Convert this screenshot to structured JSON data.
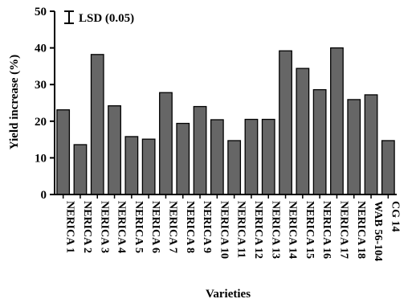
{
  "chart_data": {
    "type": "bar",
    "xlabel": "Varieties",
    "ylabel": "Yield increase (%)",
    "ylim": [
      0,
      50
    ],
    "yticks": [
      0,
      10,
      20,
      30,
      40,
      50
    ],
    "grid": false,
    "legend_placement": "top-left",
    "legend_label": "LSD (0.05)",
    "bar_color": "#666666",
    "categories": [
      "NERICA 1",
      "NERICA 2",
      "NERICA 3",
      "NERICA 4",
      "NERICA 5",
      "NERICA 6",
      "NERICA 7",
      "NERICA 8",
      "NERICA 9",
      "NERICA 10",
      "NERICA 11",
      "NERICA 12",
      "NERICA 13",
      "NERICA 14",
      "NERICA 15",
      "NERICA 16",
      "NERICA 17",
      "NERICA 18",
      "WAB 56-104",
      "CG 14"
    ],
    "values": [
      23.1,
      13.6,
      38.2,
      24.2,
      15.8,
      15.1,
      27.8,
      19.4,
      24.0,
      20.4,
      14.7,
      20.5,
      20.5,
      39.2,
      34.4,
      28.6,
      40.0,
      25.9,
      27.2,
      14.7
    ]
  }
}
